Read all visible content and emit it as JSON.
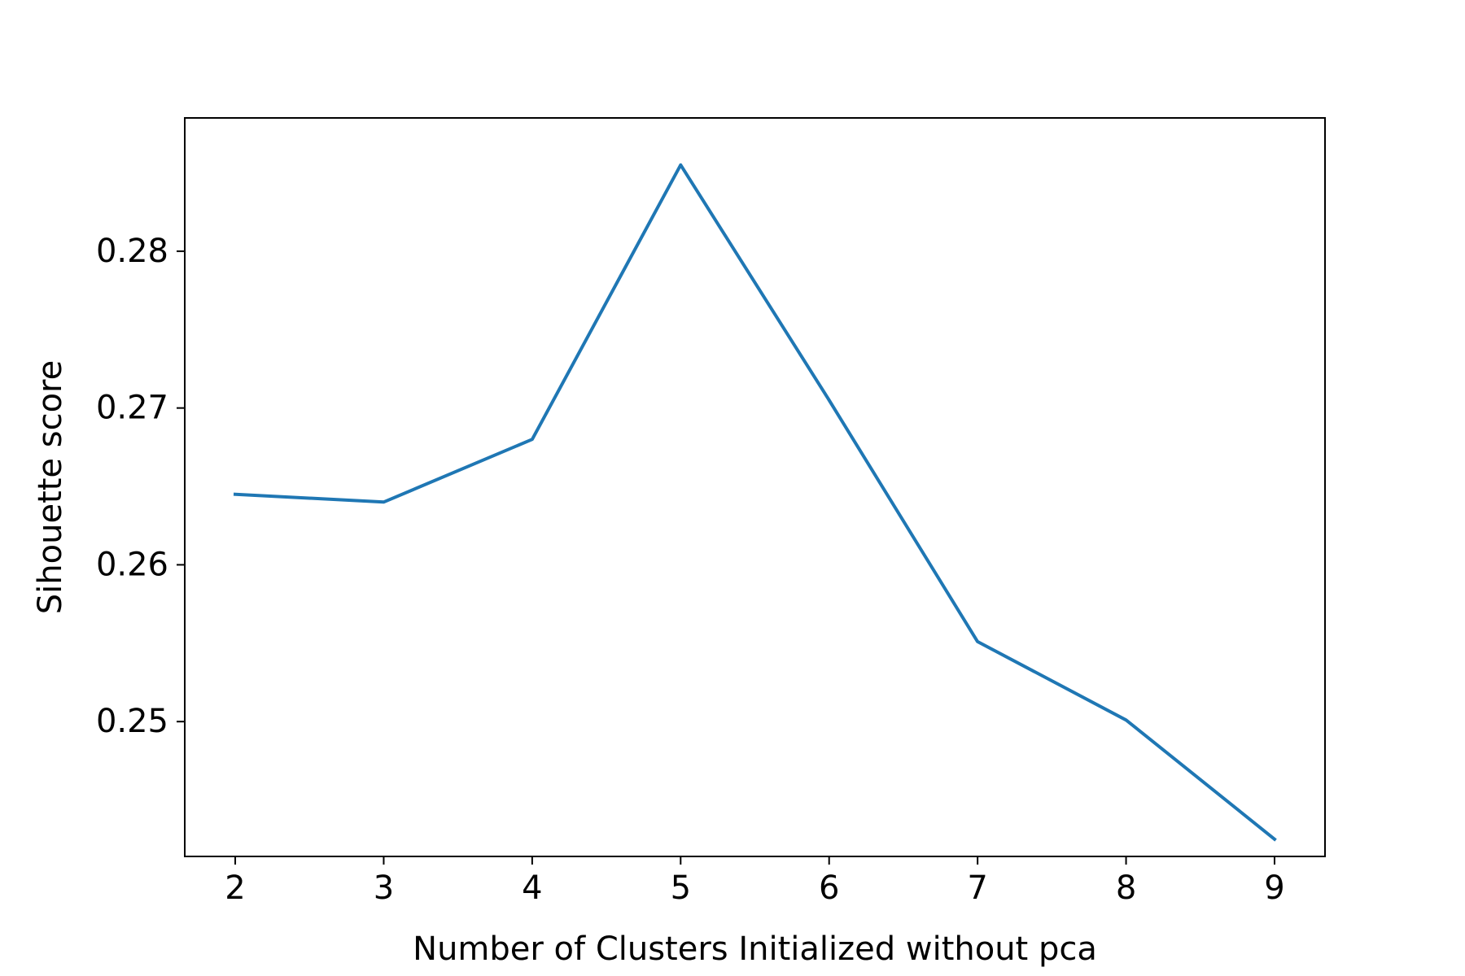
{
  "chart_data": {
    "type": "line",
    "title": "",
    "xlabel": "Number of Clusters Initialized without pca",
    "ylabel": "Sihouette score",
    "x": [
      2,
      3,
      4,
      5,
      6,
      7,
      8,
      9
    ],
    "series": [
      {
        "values": [
          0.2645,
          0.264,
          0.268,
          0.2855,
          0.2705,
          0.2551,
          0.2501,
          0.2425
        ],
        "color": "#1f77b4"
      }
    ],
    "xlim": [
      1.66,
      9.34
    ],
    "ylim": [
      0.2414,
      0.2885
    ],
    "xticks": [
      2,
      3,
      4,
      5,
      6,
      7,
      8,
      9
    ],
    "xtick_labels": [
      "2",
      "3",
      "4",
      "5",
      "6",
      "7",
      "8",
      "9"
    ],
    "yticks": [
      0.25,
      0.26,
      0.27,
      0.28
    ],
    "ytick_labels": [
      "0.25",
      "0.26",
      "0.27",
      "0.28"
    ],
    "grid": false,
    "legend": "none"
  }
}
